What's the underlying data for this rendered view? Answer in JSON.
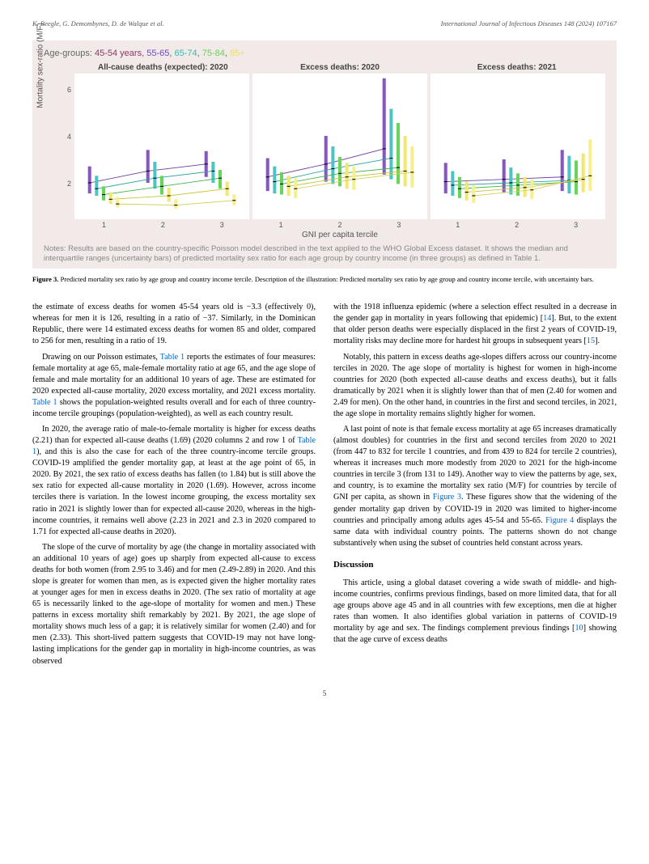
{
  "header": {
    "left": "K. Beegle, G. Demombynes, D. de Walque et al.",
    "right": "International Journal of Infectious Diseases 148 (2024) 107167"
  },
  "figure": {
    "legend_prefix": "Age-groups:",
    "age_groups": [
      {
        "label": "45-54 years",
        "color": "#8b3a62"
      },
      {
        "label": "55-65",
        "color": "#6a4db3"
      },
      {
        "label": "65-74",
        "color": "#3fb8af"
      },
      {
        "label": "75-84",
        "color": "#6fcf60"
      },
      {
        "label": "85+",
        "color": "#f2e24a"
      }
    ],
    "panel_titles": [
      "All-cause deaths (expected): 2020",
      "Excess deaths: 2020",
      "Excess deaths: 2021"
    ],
    "y_label": "Mortality sex-ratio (M/F)",
    "y_ticks": [
      "2",
      "4",
      "6"
    ],
    "ylim": [
      0.5,
      6.7
    ],
    "x_ticks": [
      "1",
      "2",
      "3"
    ],
    "x_label": "GNI per capita tercile",
    "x_positions": [
      1,
      2,
      3
    ],
    "x_jitter": [
      -0.24,
      -0.12,
      0,
      0.12,
      0.24
    ],
    "bar_half_width": 0.028,
    "series_colors": [
      "#8755c4",
      "#4fc3c3",
      "#65d65a",
      "#f2e86b",
      "#f5f08d"
    ],
    "line_colors": [
      "#6e3fa8",
      "#2fa39f",
      "#3fb84a",
      "#c9c238",
      "#d6cf56"
    ],
    "background": "#ffffff",
    "panels_bg": "#f2e9e9",
    "panels": [
      {
        "name": "panel-expected-2020",
        "series": [
          {
            "medians": [
              2.05,
              2.55,
              2.85
            ],
            "q1": [
              1.6,
              2.05,
              2.3
            ],
            "q3": [
              2.75,
              3.45,
              3.4
            ]
          },
          {
            "medians": [
              1.8,
              2.25,
              2.55
            ],
            "q1": [
              1.5,
              1.8,
              2.05
            ],
            "q3": [
              2.35,
              2.95,
              2.95
            ]
          },
          {
            "medians": [
              1.55,
              1.9,
              2.25
            ],
            "q1": [
              1.3,
              1.55,
              1.8
            ],
            "q3": [
              1.9,
              2.35,
              2.6
            ]
          },
          {
            "medians": [
              1.35,
              1.5,
              1.8
            ],
            "q1": [
              1.15,
              1.25,
              1.5
            ],
            "q3": [
              1.65,
              1.85,
              2.1
            ]
          },
          {
            "medians": [
              1.15,
              1.1,
              1.3
            ],
            "q1": [
              1.0,
              0.95,
              1.1
            ],
            "q3": [
              1.45,
              1.35,
              1.55
            ]
          }
        ]
      },
      {
        "name": "panel-excess-2020",
        "series": [
          {
            "medians": [
              2.3,
              2.85,
              3.5
            ],
            "q1": [
              1.7,
              2.1,
              2.4
            ],
            "q3": [
              3.1,
              4.05,
              6.5
            ]
          },
          {
            "medians": [
              2.1,
              2.65,
              3.1
            ],
            "q1": [
              1.6,
              2.0,
              2.2
            ],
            "q3": [
              2.75,
              3.6,
              5.2
            ]
          },
          {
            "medians": [
              2.0,
              2.45,
              2.7
            ],
            "q1": [
              1.55,
              1.9,
              2.0
            ],
            "q3": [
              2.5,
              3.15,
              4.6
            ]
          },
          {
            "medians": [
              1.9,
              2.3,
              2.55
            ],
            "q1": [
              1.5,
              1.8,
              1.9
            ],
            "q3": [
              2.35,
              2.9,
              4.05
            ]
          },
          {
            "medians": [
              1.8,
              2.2,
              2.5
            ],
            "q1": [
              1.4,
              1.75,
              1.85
            ],
            "q3": [
              2.25,
              2.75,
              3.6
            ]
          }
        ]
      },
      {
        "name": "panel-excess-2021",
        "series": [
          {
            "medians": [
              2.1,
              2.2,
              2.3
            ],
            "q1": [
              1.6,
              1.65,
              1.7
            ],
            "q3": [
              2.9,
              3.05,
              3.45
            ]
          },
          {
            "medians": [
              1.95,
              2.05,
              2.15
            ],
            "q1": [
              1.5,
              1.55,
              1.6
            ],
            "q3": [
              2.55,
              2.7,
              3.2
            ]
          },
          {
            "medians": [
              1.8,
              1.95,
              2.1
            ],
            "q1": [
              1.4,
              1.5,
              1.55
            ],
            "q3": [
              2.3,
              2.45,
              3.0
            ]
          },
          {
            "medians": [
              1.65,
              1.85,
              2.2
            ],
            "q1": [
              1.3,
              1.45,
              1.65
            ],
            "q3": [
              2.1,
              2.3,
              3.3
            ]
          },
          {
            "medians": [
              1.5,
              1.75,
              2.35
            ],
            "q1": [
              1.2,
              1.35,
              1.7
            ],
            "q3": [
              1.95,
              2.2,
              3.9
            ]
          }
        ]
      }
    ],
    "notes": "Notes: Results are based on the country-specific Poisson model described in the text applied to the WHO Global Excess dataset. It shows the median and interquartile ranges (uncertainty bars) of predicted mortality sex ratio for each age group by country income (in three groups) as defined in Table 1.",
    "caption_label": "Figure 3.",
    "caption": " Predicted mortality sex ratio by age group and country income tercile. Description of the illustration: Predicted mortality sex ratio by age group and country income tercile, with uncertainty bars."
  },
  "body": {
    "left": [
      "the estimate of excess deaths for women 45-54 years old is −3.3 (effectively 0), whereas for men it is 126, resulting in a ratio of −37. Similarly, in the Dominican Republic, there were 14 estimated excess deaths for women 85 and older, compared to 256 for men, resulting in a ratio of 19.",
      "Drawing on our Poisson estimates, <span class=\"link\">Table 1</span> reports the estimates of four measures: female mortality at age 65, male-female mortality ratio at age 65, and the age slope of female and male mortality for an additional 10 years of age. These are estimated for 2020 expected all-cause mortality, 2020 excess mortality, and 2021 excess mortality. <span class=\"link\">Table 1</span> shows the population-weighted results overall and for each of three country-income tercile groupings (population-weighted), as well as each country result.",
      "In 2020, the average ratio of male-to-female mortality is higher for excess deaths (2.21) than for expected all-cause deaths (1.69) (2020 columns 2 and row 1 of <span class=\"link\">Table 1</span>), and this is also the case for each of the three country-income tercile groups. COVID-19 amplified the gender mortality gap, at least at the age point of 65, in 2020. By 2021, the sex ratio of excess deaths has fallen (to 1.84) but is still above the sex ratio for expected all-cause mortality in 2020 (1.69). However, across income terciles there is variation. In the lowest income grouping, the excess mortality sex ratio in 2021 is slightly lower than for expected all-cause 2020, whereas in the high-income countries, it remains well above (2.23 in 2021 and 2.3 in 2020 compared to 1.71 for expected all-cause deaths in 2020).",
      "The slope of the curve of mortality by age (the change in mortality associated with an additional 10 years of age) goes up sharply from expected all-cause to excess deaths for both women (from 2.95 to 3.46) and for men (2.49-2.89) in 2020. And this slope is greater for women than men, as is expected given the higher mortality rates at younger ages for men in excess deaths in 2020. (The sex ratio of mortality at age 65 is necessarily linked to the age-slope of mortality for women and men.) These patterns in excess mortality shift remarkably by 2021. By 2021, the age slope of mortality shows much less of a gap; it is relatively similar for women (2.40) and for men (2.33). This short-lived pattern suggests that COVID-19 may not have long-lasting implications for the gender gap in mortality in high-income countries, as was observed"
    ],
    "right": [
      "with the 1918 influenza epidemic (where a selection effect resulted in a decrease in the gender gap in mortality in years following that epidemic) [<span class=\"link\">14</span>]. But, to the extent that older person deaths were especially displaced in the first 2 years of COVID-19, mortality risks may decline more for hardest hit groups in subsequent years [<span class=\"link\">15</span>].",
      "Notably, this pattern in excess deaths age-slopes differs across our country-income terciles in 2020. The age slope of mortality is highest for women in high-income countries for 2020 (both expected all-cause deaths and excess deaths), but it falls dramatically by 2021 when it is slightly lower than that of men (2.40 for women and 2.49 for men). On the other hand, in countries in the first and second terciles, in 2021, the age slope in mortality remains slightly higher for women.",
      "A last point of note is that female excess mortality at age 65 increases dramatically (almost doubles) for countries in the first and second terciles from 2020 to 2021 (from 447 to 832 for tercile 1 countries, and from 439 to 824 for tercile 2 countries), whereas it increases much more modestly from 2020 to 2021 for the high-income countries in tercile 3 (from 131 to 149). Another way to view the patterns by age, sex, and country, is to examine the mortality sex ratio (M/F) for countries by tercile of GNI per capita, as shown in <span class=\"link\">Figure 3</span>. These figures show that the widening of the gender mortality gap driven by COVID-19 in 2020 was limited to higher-income countries and principally among adults ages 45-54 and 55-65. <span class=\"link\">Figure 4</span> displays the same data with individual country points. The patterns shown do not change substantively when using the subset of countries held constant across years."
    ],
    "discussion_heading": "Discussion",
    "discussion": [
      "This article, using a global dataset covering a wide swath of middle- and high-income countries, confirms previous findings, based on more limited data, that for all age groups above age 45 and in all countries with few exceptions, men die at higher rates than women. It also identifies global variation in patterns of COVID-19 mortality by age and sex. The findings complement previous findings [<span class=\"link\">10</span>] showing that the age curve of excess deaths"
    ]
  },
  "page_number": "5"
}
